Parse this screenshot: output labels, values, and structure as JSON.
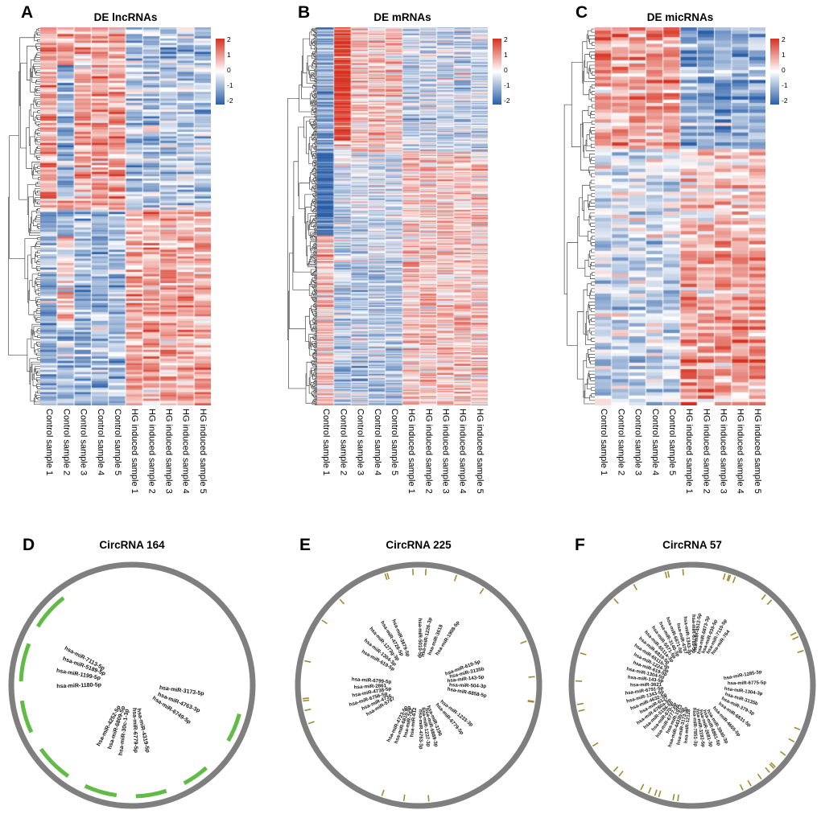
{
  "chart_data": [
    {
      "type": "heatmap",
      "panel": "A",
      "title": "DE lncRNAs",
      "n_rows": 170,
      "seed": 11,
      "noise": 0.75,
      "columns": [
        "Control sample 1",
        "Control sample 2",
        "Control sample 3",
        "Control sample 4",
        "Control sample 5",
        "HG induced sample 1",
        "HG induced sample 2",
        "HG induced sample 3",
        "HG induced sample 4",
        "HG induced sample 5"
      ],
      "colorbar": {
        "vmin": -2,
        "vmax": 2,
        "ticks": [
          "2",
          "1",
          "0",
          "-1",
          "-2"
        ],
        "high": "#d7301f",
        "mid": "#ffffff",
        "low": "#2a5fa8"
      },
      "blocks": [
        {
          "rows": [
            0,
            0.48
          ],
          "control": 0.9,
          "hg": -0.7
        },
        {
          "rows": [
            0.48,
            1.01
          ],
          "control": -0.9,
          "hg": 0.8
        }
      ],
      "anomalies": [
        {
          "col": 1,
          "rows": [
            0.1,
            0.45
          ],
          "delta": -1.8
        },
        {
          "col": 1,
          "rows": [
            0.55,
            0.8
          ],
          "delta": 1.2
        }
      ]
    },
    {
      "type": "heatmap",
      "panel": "B",
      "title": "DE mRNAs",
      "n_rows": 420,
      "seed": 22,
      "noise": 0.8,
      "columns": [
        "Control sample 1",
        "Control sample 2",
        "Control sample 3",
        "Control sample 4",
        "Control sample 5",
        "HG induced sample 1",
        "HG induced sample 2",
        "HG induced sample 3",
        "HG induced sample 4",
        "HG induced sample 5"
      ],
      "colorbar": {
        "vmin": -2,
        "vmax": 2,
        "ticks": [
          "2",
          "1",
          "0",
          "-1",
          "-2"
        ],
        "high": "#d7301f",
        "mid": "#ffffff",
        "low": "#2a5fa8"
      },
      "blocks": [
        {
          "rows": [
            0,
            0.33
          ],
          "control": 0.55,
          "hg": -0.5
        },
        {
          "rows": [
            0.33,
            0.62
          ],
          "control": -0.45,
          "hg": 0.55
        },
        {
          "rows": [
            0.62,
            1.01
          ],
          "control": -0.7,
          "hg": 0.5
        }
      ],
      "anomalies": [
        {
          "col": 0,
          "rows": [
            0,
            0.55
          ],
          "delta": -1.6
        },
        {
          "col": 0,
          "rows": [
            0.55,
            1.01
          ],
          "delta": 1.2
        },
        {
          "col": 1,
          "rows": [
            0,
            0.3
          ],
          "delta": 1.4
        }
      ]
    },
    {
      "type": "heatmap",
      "panel": "C",
      "title": "DE micRNAs",
      "n_rows": 115,
      "seed": 33,
      "noise": 0.7,
      "columns": [
        "Control sample 1",
        "Control sample 2",
        "Control sample 3",
        "Control sample 4",
        "Control sample 5",
        "HG induced sample 1",
        "HG induced sample 2",
        "HG induced sample 3",
        "HG induced sample 4",
        "HG induced sample 5"
      ],
      "colorbar": {
        "vmin": -2,
        "vmax": 2,
        "ticks": [
          "2",
          "1",
          "0",
          "-1",
          "-2"
        ],
        "high": "#d7301f",
        "mid": "#ffffff",
        "low": "#2a5fa8"
      },
      "blocks": [
        {
          "rows": [
            0,
            0.32
          ],
          "control": 0.9,
          "hg": -1.1
        },
        {
          "rows": [
            0.32,
            0.56
          ],
          "control": -0.25,
          "hg": 0.45
        },
        {
          "rows": [
            0.56,
            1.01
          ],
          "control": -0.5,
          "hg": 0.95
        }
      ],
      "anomalies": []
    },
    {
      "type": "circos",
      "panel": "D",
      "title": "CircRNA 164",
      "seed": 5,
      "ring_color": "#7f7f7f",
      "arc_color": "#62bb46",
      "arcs": [
        [
          128,
          148
        ],
        [
          158,
          178
        ],
        [
          188,
          205
        ],
        [
          215,
          235
        ],
        [
          245,
          262
        ],
        [
          272,
          288
        ],
        [
          298,
          312
        ],
        [
          330,
          345
        ]
      ],
      "mirnas": [
        {
          "name": "hsa-miR-7113-5p",
          "angle": 152,
          "r": 40
        },
        {
          "name": "hsa-miR-5189-5p",
          "angle": 160,
          "r": 36
        },
        {
          "name": "hsa-miR-1199-5p",
          "angle": 170,
          "r": 40
        },
        {
          "name": "hsa-miR-1180-5p",
          "angle": 182,
          "r": 38
        },
        {
          "name": "hsa-miR-4252-5p",
          "angle": 242,
          "r": 30
        },
        {
          "name": "hsa-miR-6809-5p",
          "angle": 252,
          "r": 28
        },
        {
          "name": "hsa-miR-30c-1-3p",
          "angle": 262,
          "r": 30
        },
        {
          "name": "hsa-miR-6779-5p",
          "angle": 272,
          "r": 28
        },
        {
          "name": "hsa-miR-4319-5p",
          "angle": 282,
          "r": 30
        },
        {
          "name": "hsa-miR-6749-5p",
          "angle": 326,
          "r": 30
        },
        {
          "name": "hsa-miR-4763-3p",
          "angle": 338,
          "r": 34
        },
        {
          "name": "hsa-miR-3173-5p",
          "angle": 352,
          "r": 34
        }
      ]
    },
    {
      "type": "circos",
      "panel": "E",
      "title": "CircRNA 225",
      "seed": 7,
      "ring_color": "#7f7f7f",
      "tick_color": "#a3892f",
      "tick_count": 20,
      "mirnas": [
        {
          "name": "hsa-miR-5010-5p",
          "angle": 90,
          "r": 34
        },
        {
          "name": "hsa-miR-1226-3p",
          "angle": 79,
          "r": 36
        },
        {
          "name": "hsa-miR-3618",
          "angle": 68,
          "r": 40
        },
        {
          "name": "hsa-miR-1908-5p",
          "angle": 57,
          "r": 44
        },
        {
          "name": "hsa-miR-3679-5p",
          "angle": 112,
          "r": 38
        },
        {
          "name": "hsa-miR-4728-5p",
          "angle": 121,
          "r": 42
        },
        {
          "name": "hsa-miR-1273g-3p",
          "angle": 131,
          "r": 40
        },
        {
          "name": "hsa-miR-1304-3p",
          "angle": 141,
          "r": 38
        },
        {
          "name": "hsa-miR-619-5p",
          "angle": 150,
          "r": 36
        },
        {
          "name": "hsa-miR-6799-5p",
          "angle": 176,
          "r": 34
        },
        {
          "name": "hsa-miR-2861",
          "angle": 183,
          "r": 40
        },
        {
          "name": "hsa-miR-4738-5p",
          "angle": 190,
          "r": 34
        },
        {
          "name": "hsa-miR-6756-5p",
          "angle": 197,
          "r": 40
        },
        {
          "name": "hsa-miR-4736",
          "angle": 204,
          "r": 36
        },
        {
          "name": "hsa-miR-5787",
          "angle": 211,
          "r": 34
        },
        {
          "name": "hsa-miR-4723-5p",
          "angle": 243,
          "r": 30
        },
        {
          "name": "hsa-miR-6810-5p",
          "angle": 250,
          "r": 28
        },
        {
          "name": "hsa-miR-762",
          "angle": 257,
          "r": 30
        },
        {
          "name": "hsa-miR-612",
          "angle": 264,
          "r": 28
        },
        {
          "name": "hsa-miR-4763-3p",
          "angle": 271,
          "r": 30
        },
        {
          "name": "hsa-miR-1237-3p",
          "angle": 278,
          "r": 28
        },
        {
          "name": "hsa-miR-6889-3p",
          "angle": 285,
          "r": 30
        },
        {
          "name": "hsa-miR-3196",
          "angle": 292,
          "r": 28
        },
        {
          "name": "hsa-miR-6779-5p",
          "angle": 311,
          "r": 32
        },
        {
          "name": "hsa-miR-1233-3p",
          "angle": 322,
          "r": 34
        },
        {
          "name": "hsa-miR-6858-5p",
          "angle": 350,
          "r": 36
        },
        {
          "name": "hsa-miR-504-3p",
          "angle": 358,
          "r": 38
        },
        {
          "name": "hsa-miR-143-5p",
          "angle": 6,
          "r": 36
        },
        {
          "name": "hsa-miR-3135b",
          "angle": 13,
          "r": 40
        },
        {
          "name": "hsa-miR-619-5p",
          "angle": 20,
          "r": 36
        }
      ]
    },
    {
      "type": "circos",
      "panel": "F",
      "title": "CircRNA 57",
      "seed": 9,
      "ring_color": "#7f7f7f",
      "tick_color": "#a3892f",
      "tick_count": 36,
      "mirnas": [
        {
          "name": "hsa-miR-764",
          "angle": 55,
          "r": 46
        },
        {
          "name": "hsa-miR-7110-5p",
          "angle": 62,
          "r": 44
        },
        {
          "name": "hsa-miR-939-5p",
          "angle": 69,
          "r": 42
        },
        {
          "name": "hsa-miR-6873-3p",
          "angle": 76,
          "r": 40
        },
        {
          "name": "hsa-miR-4512-5p",
          "angle": 83,
          "r": 42
        },
        {
          "name": "hsa-miR-6789-5p",
          "angle": 90,
          "r": 40
        },
        {
          "name": "hsa-miR-1343-3p",
          "angle": 97,
          "r": 38
        },
        {
          "name": "hsa-miR-4767",
          "angle": 104,
          "r": 40
        },
        {
          "name": "hsa-miR-6871-5p",
          "angle": 111,
          "r": 42
        },
        {
          "name": "hsa-miR-3140-3p",
          "angle": 118,
          "r": 40
        },
        {
          "name": "hsa-miR-5571-5p",
          "angle": 125,
          "r": 40
        },
        {
          "name": "hsa-miR-6511a-3p",
          "angle": 132,
          "r": 38
        },
        {
          "name": "hsa-miR-6819-5p",
          "angle": 139,
          "r": 40
        },
        {
          "name": "hsa-miR-6511b-3p",
          "angle": 146,
          "r": 36
        },
        {
          "name": "hsa-miR-1224-3p",
          "angle": 153,
          "r": 34
        },
        {
          "name": "hsa-miR-619-5p",
          "angle": 160,
          "r": 34
        },
        {
          "name": "hsa-miR-1304-5p",
          "angle": 167,
          "r": 36
        },
        {
          "name": "hsa-miR-143-5p",
          "angle": 174,
          "r": 36
        },
        {
          "name": "hsa-miR-3621",
          "angle": 181,
          "r": 38
        },
        {
          "name": "hsa-miR-6791-5p",
          "angle": 188,
          "r": 36
        },
        {
          "name": "hsa-miR-1343-5p",
          "angle": 195,
          "r": 36
        },
        {
          "name": "hsa-miR-4632-5p",
          "angle": 202,
          "r": 34
        },
        {
          "name": "hsa-miR-6127",
          "angle": 209,
          "r": 34
        },
        {
          "name": "hsa-miR-6780a-5p",
          "angle": 216,
          "r": 32
        },
        {
          "name": "hsa-miR-5196-5p",
          "angle": 223,
          "r": 32
        },
        {
          "name": "hsa-miR-670-3p",
          "angle": 230,
          "r": 30
        },
        {
          "name": "hsa-miR-6777-5p",
          "angle": 237,
          "r": 30
        },
        {
          "name": "hsa-miR-1913",
          "angle": 244,
          "r": 28
        },
        {
          "name": "hsa-miR-4433b-5p",
          "angle": 251,
          "r": 30
        },
        {
          "name": "hsa-miR-3173-3p",
          "angle": 258,
          "r": 28
        },
        {
          "name": "hsa-miR-12128",
          "angle": 265,
          "r": 30
        },
        {
          "name": "hsa-miR-7851-3p",
          "angle": 272,
          "r": 28
        },
        {
          "name": "hsa-miR-3192-5p",
          "angle": 279,
          "r": 30
        },
        {
          "name": "hsa-miR-2681-3p",
          "angle": 286,
          "r": 32
        },
        {
          "name": "hsa-miR-6861-5p",
          "angle": 293,
          "r": 34
        },
        {
          "name": "hsa-miR-3940-3p",
          "angle": 300,
          "r": 36
        },
        {
          "name": "hsa-miR-4665-5p",
          "angle": 312,
          "r": 38
        },
        {
          "name": "hsa-miR-6831-5p",
          "angle": 324,
          "r": 40
        },
        {
          "name": "hsa-miR-379-3p",
          "angle": 334,
          "r": 40
        },
        {
          "name": "hsa-miR-3135b",
          "angle": 343,
          "r": 42
        },
        {
          "name": "hsa-miR-1304-3p",
          "angle": 352,
          "r": 40
        },
        {
          "name": "hsa-miR-6775-5p",
          "angle": 1,
          "r": 44
        },
        {
          "name": "hsa-miR-1285-3p",
          "angle": 10,
          "r": 40
        }
      ]
    }
  ]
}
